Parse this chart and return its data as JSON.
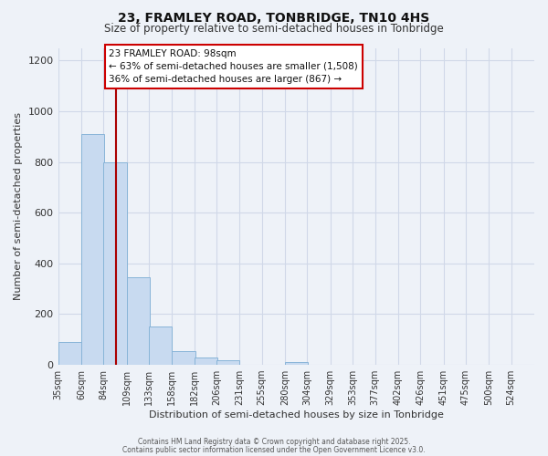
{
  "title_line1": "23, FRAMLEY ROAD, TONBRIDGE, TN10 4HS",
  "title_line2": "Size of property relative to semi-detached houses in Tonbridge",
  "xlabel": "Distribution of semi-detached houses by size in Tonbridge",
  "ylabel": "Number of semi-detached properties",
  "categories": [
    "35sqm",
    "60sqm",
    "84sqm",
    "109sqm",
    "133sqm",
    "158sqm",
    "182sqm",
    "206sqm",
    "231sqm",
    "255sqm",
    "280sqm",
    "304sqm",
    "329sqm",
    "353sqm",
    "377sqm",
    "402sqm",
    "426sqm",
    "451sqm",
    "475sqm",
    "500sqm",
    "524sqm"
  ],
  "cat_values": [
    35,
    60,
    84,
    109,
    133,
    158,
    182,
    206,
    231,
    255,
    280,
    304,
    329,
    353,
    377,
    402,
    426,
    451,
    475,
    500,
    524
  ],
  "values": [
    90,
    910,
    800,
    345,
    150,
    55,
    30,
    20,
    0,
    0,
    10,
    0,
    0,
    0,
    0,
    0,
    0,
    0,
    0,
    0,
    0
  ],
  "bar_color": "#c8daf0",
  "bar_edge_color": "#88b4d8",
  "grid_color": "#d0d8e8",
  "background_color": "#eef2f8",
  "annotation_box_text_line1": "23 FRAMLEY ROAD: 98sqm",
  "annotation_box_text_line2": "← 63% of semi-detached houses are smaller (1,508)",
  "annotation_box_text_line3": "36% of semi-detached houses are larger (867) →",
  "annotation_box_edge_color": "#cc0000",
  "annotation_box_face_color": "#ffffff",
  "vline_x": 98,
  "vline_color": "#aa0000",
  "ylim": [
    0,
    1250
  ],
  "yticks": [
    0,
    200,
    400,
    600,
    800,
    1000,
    1200
  ],
  "xlim_left": 35,
  "xlim_right": 549,
  "footer_line1": "Contains HM Land Registry data © Crown copyright and database right 2025.",
  "footer_line2": "Contains public sector information licensed under the Open Government Licence v3.0."
}
